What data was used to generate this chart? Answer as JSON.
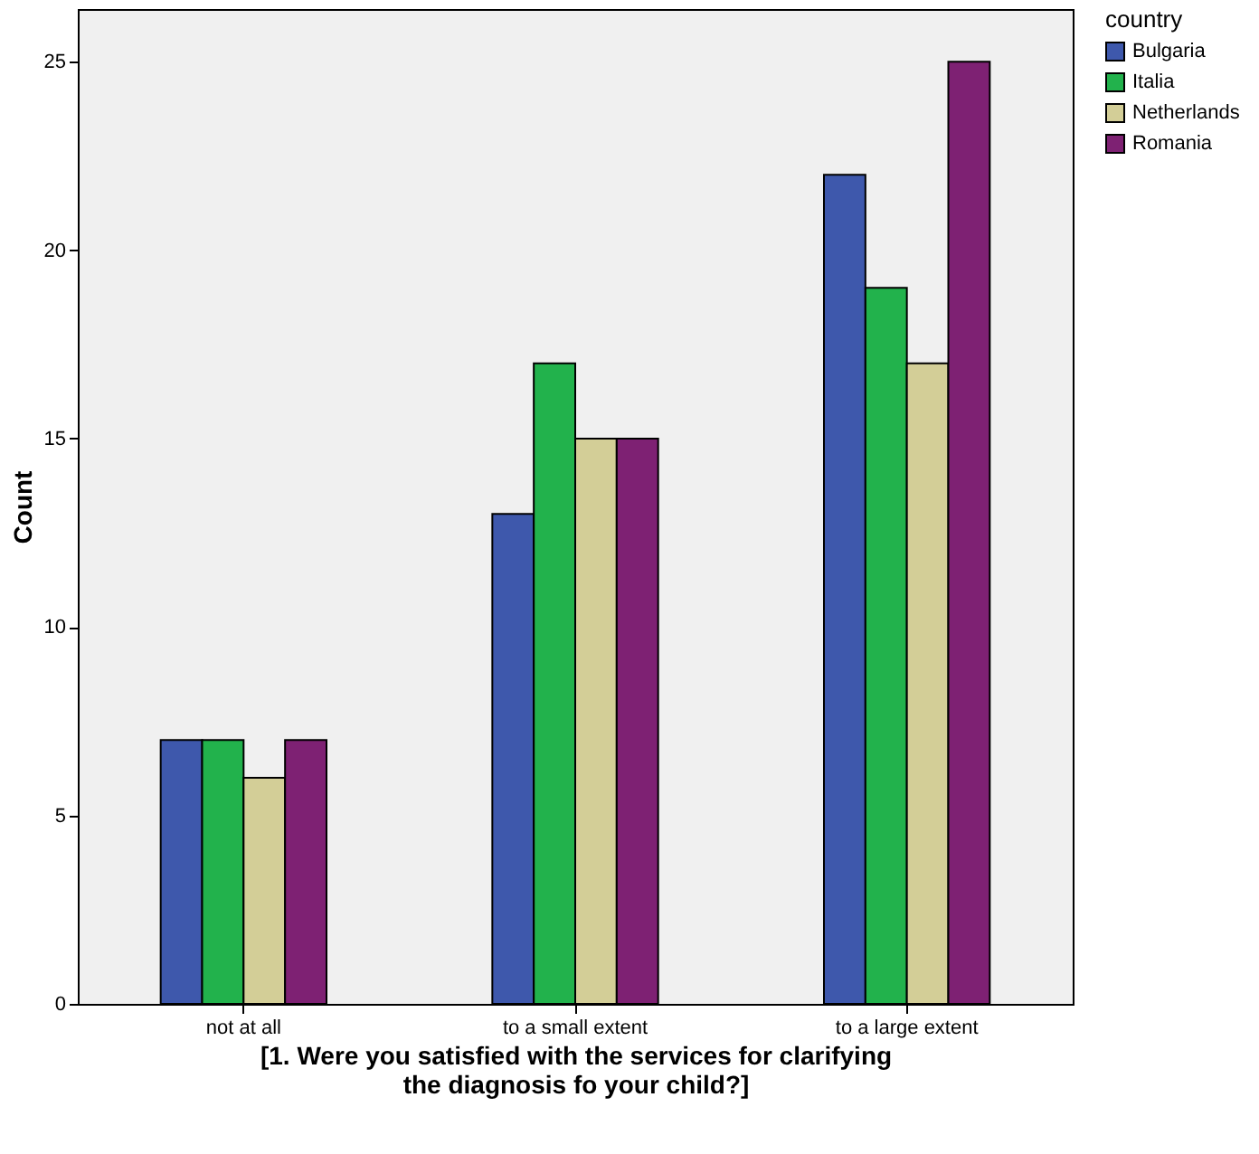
{
  "chart_data": {
    "type": "bar",
    "xlabel": "[1. Were you satisfied with the services for clarifying the diagnosis fo your child?]",
    "ylabel": "Count",
    "legend_title": "country",
    "categories": [
      "not at all",
      "to a small extent",
      "to a large extent"
    ],
    "series": [
      {
        "name": "Bulgaria",
        "color": "#3e58ac",
        "values": [
          7,
          13,
          22
        ]
      },
      {
        "name": "Italia",
        "color": "#22b24c",
        "values": [
          7,
          17,
          19
        ]
      },
      {
        "name": "Netherlands",
        "color": "#d3ce97",
        "values": [
          6,
          15,
          17
        ]
      },
      {
        "name": "Romania",
        "color": "#7e2173",
        "values": [
          7,
          15,
          25
        ]
      }
    ],
    "ylim": [
      0,
      26.4
    ],
    "yticks": [
      0,
      5,
      10,
      15,
      20,
      25
    ],
    "grid": false,
    "legend": "top right"
  }
}
